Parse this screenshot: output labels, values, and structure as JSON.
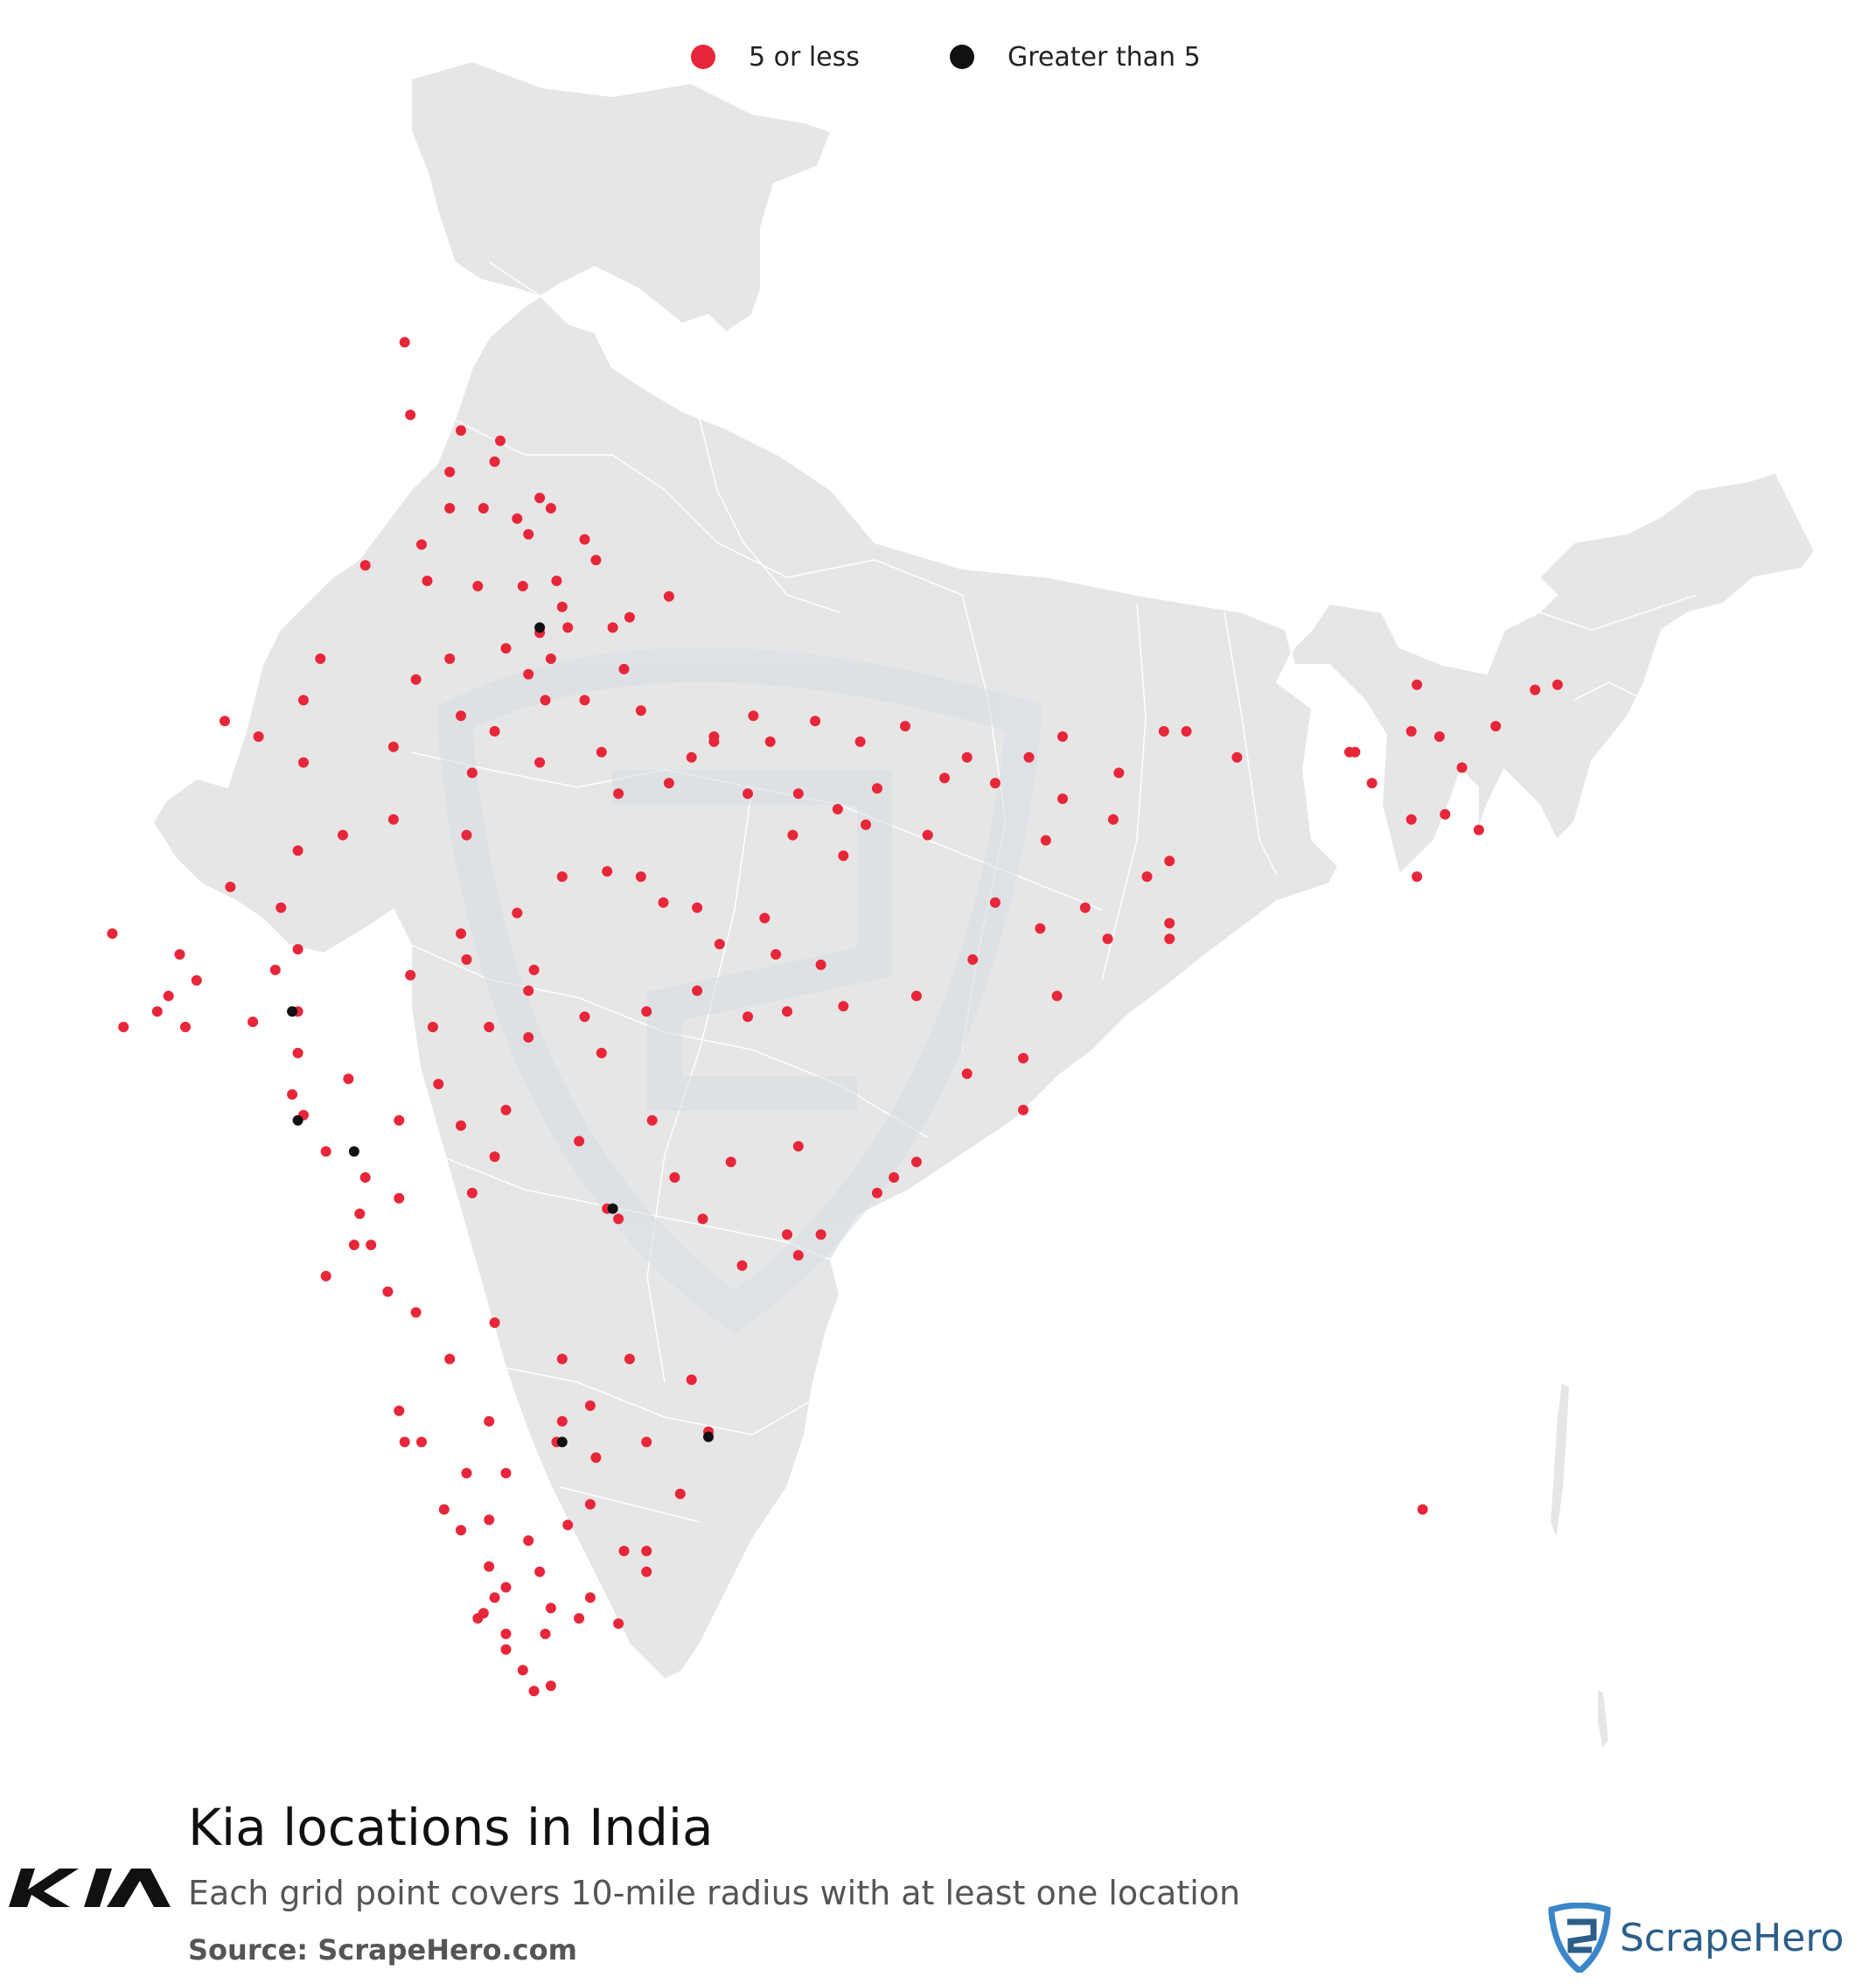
{
  "legend": {
    "items": [
      {
        "label": "5 or less",
        "color": "#e8263a"
      },
      {
        "label": "Greater than 5",
        "color": "#111111"
      }
    ]
  },
  "title": "Kia locations in India",
  "subtitle": "Each grid point covers 10-mile radius with at least one location",
  "source": "Source: ScrapeHero.com",
  "brand": {
    "scrapehero_name": "ScrapeHero",
    "kia_logo_text": "KIA"
  },
  "colors": {
    "land": "#e6e6e6",
    "border": "#ffffff",
    "red": "#e8263a",
    "black": "#111111",
    "watermark": "#dfe3e7"
  },
  "points_lonlat": {
    "red": [
      [
        74.8,
        34.1
      ],
      [
        74.9,
        32.7
      ],
      [
        75.8,
        32.4
      ],
      [
        76.5,
        32.2
      ],
      [
        75.6,
        31.6
      ],
      [
        76.4,
        31.8
      ],
      [
        77.2,
        31.1
      ],
      [
        77.4,
        30.9
      ],
      [
        77.0,
        30.4
      ],
      [
        76.8,
        30.7
      ],
      [
        76.2,
        30.9
      ],
      [
        75.6,
        30.9
      ],
      [
        75.1,
        30.2
      ],
      [
        74.1,
        29.8
      ],
      [
        75.2,
        29.5
      ],
      [
        76.1,
        29.4
      ],
      [
        76.9,
        29.4
      ],
      [
        77.5,
        29.5
      ],
      [
        77.6,
        29.0
      ],
      [
        78.0,
        30.3
      ],
      [
        78.2,
        29.9
      ],
      [
        79.5,
        29.2
      ],
      [
        78.8,
        28.8
      ],
      [
        78.5,
        28.6
      ],
      [
        77.7,
        28.6
      ],
      [
        77.2,
        28.5
      ],
      [
        77.4,
        28.0
      ],
      [
        77.0,
        27.7
      ],
      [
        76.6,
        28.2
      ],
      [
        75.6,
        28.0
      ],
      [
        75.0,
        27.6
      ],
      [
        73.3,
        28.0
      ],
      [
        73.0,
        27.2
      ],
      [
        72.2,
        26.5
      ],
      [
        71.6,
        26.8
      ],
      [
        73.0,
        26.0
      ],
      [
        74.6,
        26.3
      ],
      [
        75.8,
        26.9
      ],
      [
        76.4,
        26.6
      ],
      [
        77.2,
        26.0
      ],
      [
        78.0,
        27.2
      ],
      [
        78.7,
        27.8
      ],
      [
        79.0,
        27.0
      ],
      [
        80.3,
        26.4
      ],
      [
        79.5,
        25.6
      ],
      [
        78.6,
        25.4
      ],
      [
        77.6,
        23.8
      ],
      [
        76.0,
        25.8
      ],
      [
        75.9,
        24.6
      ],
      [
        74.6,
        24.9
      ],
      [
        73.7,
        24.6
      ],
      [
        72.9,
        24.3
      ],
      [
        71.7,
        23.6
      ],
      [
        72.6,
        23.2
      ],
      [
        72.9,
        22.4
      ],
      [
        72.5,
        22.0
      ],
      [
        70.8,
        22.3
      ],
      [
        69.6,
        22.7
      ],
      [
        71.1,
        21.8
      ],
      [
        70.6,
        21.5
      ],
      [
        70.4,
        21.2
      ],
      [
        69.8,
        20.9
      ],
      [
        70.9,
        20.9
      ],
      [
        72.1,
        21.0
      ],
      [
        72.9,
        21.2
      ],
      [
        72.9,
        20.4
      ],
      [
        72.8,
        19.6
      ],
      [
        73.0,
        19.2
      ],
      [
        73.8,
        19.9
      ],
      [
        74.7,
        19.1
      ],
      [
        75.4,
        19.8
      ],
      [
        75.8,
        19.0
      ],
      [
        76.3,
        20.9
      ],
      [
        77.0,
        20.7
      ],
      [
        78.0,
        21.1
      ],
      [
        78.3,
        20.4
      ],
      [
        79.1,
        21.2
      ],
      [
        80.0,
        21.6
      ],
      [
        80.9,
        21.1
      ],
      [
        81.6,
        21.2
      ],
      [
        82.2,
        22.1
      ],
      [
        81.2,
        23.0
      ],
      [
        80.0,
        23.2
      ],
      [
        79.0,
        23.8
      ],
      [
        78.4,
        23.9
      ],
      [
        76.8,
        23.1
      ],
      [
        75.8,
        22.7
      ],
      [
        75.9,
        22.2
      ],
      [
        77.1,
        22.0
      ],
      [
        74.9,
        21.9
      ],
      [
        75.3,
        20.9
      ],
      [
        73.4,
        18.5
      ],
      [
        74.1,
        18.0
      ],
      [
        74.7,
        17.6
      ],
      [
        73.9,
        16.7
      ],
      [
        73.4,
        16.1
      ],
      [
        74.5,
        15.8
      ],
      [
        75.0,
        15.4
      ],
      [
        76.4,
        15.2
      ],
      [
        77.6,
        14.5
      ],
      [
        78.8,
        14.5
      ],
      [
        79.9,
        14.1
      ],
      [
        78.1,
        13.6
      ],
      [
        77.6,
        13.3
      ],
      [
        76.6,
        12.3
      ],
      [
        77.5,
        12.9
      ],
      [
        78.2,
        12.6
      ],
      [
        79.1,
        12.9
      ],
      [
        80.2,
        13.1
      ],
      [
        79.7,
        11.9
      ],
      [
        79.1,
        10.8
      ],
      [
        78.7,
        10.8
      ],
      [
        78.1,
        11.7
      ],
      [
        77.7,
        11.3
      ],
      [
        77.0,
        11.0
      ],
      [
        76.6,
        10.1
      ],
      [
        76.3,
        10.5
      ],
      [
        76.2,
        9.6
      ],
      [
        76.9,
        8.5
      ],
      [
        77.4,
        8.2
      ],
      [
        77.1,
        8.1
      ],
      [
        76.6,
        8.9
      ],
      [
        75.5,
        11.6
      ],
      [
        75.8,
        11.2
      ],
      [
        76.3,
        11.4
      ],
      [
        76.4,
        9.9
      ],
      [
        76.1,
        9.5
      ],
      [
        76.6,
        9.2
      ],
      [
        77.3,
        9.2
      ],
      [
        78.1,
        9.9
      ],
      [
        78.6,
        9.4
      ],
      [
        79.1,
        10.4
      ],
      [
        77.4,
        9.7
      ],
      [
        77.9,
        9.5
      ],
      [
        77.2,
        10.4
      ],
      [
        75.1,
        12.9
      ],
      [
        74.8,
        12.9
      ],
      [
        74.7,
        13.5
      ],
      [
        75.6,
        14.5
      ],
      [
        76.3,
        13.3
      ],
      [
        75.9,
        12.3
      ],
      [
        80.8,
        16.3
      ],
      [
        81.6,
        16.9
      ],
      [
        81.8,
        16.5
      ],
      [
        82.2,
        16.9
      ],
      [
        83.2,
        17.7
      ],
      [
        83.9,
        18.3
      ],
      [
        83.5,
        18.0
      ],
      [
        81.8,
        18.6
      ],
      [
        80.6,
        18.3
      ],
      [
        79.6,
        18.0
      ],
      [
        79.2,
        19.1
      ],
      [
        80.1,
        17.2
      ],
      [
        78.4,
        17.4
      ],
      [
        78.6,
        17.2
      ],
      [
        77.9,
        18.7
      ],
      [
        76.4,
        18.4
      ],
      [
        76.0,
        17.7
      ],
      [
        74.0,
        17.3
      ],
      [
        74.2,
        16.7
      ],
      [
        82.6,
        21.3
      ],
      [
        83.9,
        21.5
      ],
      [
        84.8,
        20.0
      ],
      [
        85.8,
        20.3
      ],
      [
        85.8,
        19.3
      ],
      [
        86.4,
        21.5
      ],
      [
        84.9,
        22.2
      ],
      [
        85.3,
        23.3
      ],
      [
        86.1,
        22.8
      ],
      [
        86.9,
        23.2
      ],
      [
        87.3,
        22.6
      ],
      [
        88.4,
        22.6
      ],
      [
        88.4,
        22.9
      ],
      [
        88.0,
        23.8
      ],
      [
        88.4,
        24.1
      ],
      [
        87.4,
        24.9
      ],
      [
        86.2,
        24.5
      ],
      [
        86.5,
        25.3
      ],
      [
        85.3,
        25.6
      ],
      [
        84.4,
        25.7
      ],
      [
        83.7,
        26.7
      ],
      [
        82.9,
        26.4
      ],
      [
        82.1,
        26.8
      ],
      [
        81.0,
        26.9
      ],
      [
        80.3,
        26.5
      ],
      [
        81.8,
        25.4
      ],
      [
        82.5,
        25.1
      ],
      [
        83.0,
        24.8
      ],
      [
        83.2,
        25.5
      ],
      [
        82.6,
        24.2
      ],
      [
        81.7,
        24.6
      ],
      [
        84.1,
        24.6
      ],
      [
        84.8,
        26.1
      ],
      [
        85.9,
        26.1
      ],
      [
        86.5,
        26.5
      ],
      [
        87.5,
        25.8
      ],
      [
        88.3,
        26.6
      ],
      [
        88.7,
        26.6
      ],
      [
        89.6,
        26.1
      ],
      [
        91.6,
        26.2
      ],
      [
        91.7,
        26.2
      ],
      [
        92.7,
        26.6
      ],
      [
        93.2,
        26.5
      ],
      [
        94.2,
        26.7
      ],
      [
        95.3,
        27.5
      ],
      [
        94.9,
        27.4
      ],
      [
        92.8,
        27.5
      ],
      [
        93.3,
        25.0
      ],
      [
        93.9,
        24.7
      ],
      [
        92.8,
        23.8
      ],
      [
        92.7,
        24.9
      ],
      [
        92.0,
        25.6
      ],
      [
        93.6,
        25.9
      ],
      [
        92.9,
        11.6
      ],
      [
        79.4,
        23.3
      ],
      [
        77.0,
        21.6
      ],
      [
        76.6,
        19.3
      ],
      [
        80.4,
        22.5
      ],
      [
        81.4,
        22.3
      ],
      [
        78.3,
        26.2
      ],
      [
        77.3,
        27.2
      ],
      [
        79.9,
        26.1
      ],
      [
        80.9,
        25.4
      ],
      [
        81.3,
        26.4
      ]
    ],
    "black": [
      [
        77.2,
        28.6
      ],
      [
        72.9,
        19.1
      ],
      [
        72.8,
        21.2
      ],
      [
        73.9,
        18.5
      ],
      [
        78.5,
        17.4
      ],
      [
        77.6,
        12.9
      ],
      [
        80.2,
        13.0
      ]
    ]
  }
}
